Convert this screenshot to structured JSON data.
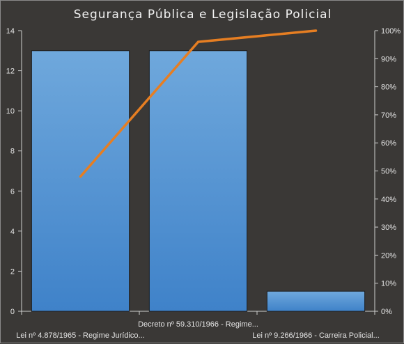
{
  "chart_data": {
    "type": "bar",
    "title": "Segurança Pública e Legislação Policial",
    "categories": [
      "Lei nº 4.878/1965 - Regime Jurídico...",
      "Decreto nº 59.310/1966 - Regime...",
      "Lei nº 9.266/1966 - Carreira Policial..."
    ],
    "series": [
      {
        "type": "bar",
        "values": [
          13,
          13,
          1
        ]
      },
      {
        "type": "line",
        "axis": "right",
        "values": [
          0.48,
          0.96,
          1.0
        ]
      }
    ],
    "ylim": [
      0,
      14
    ],
    "y_ticks": [
      "0",
      "2",
      "4",
      "6",
      "8",
      "10",
      "12",
      "14"
    ],
    "y2lim": [
      0,
      1
    ],
    "y2_ticks": [
      "0%",
      "10%",
      "20%",
      "30%",
      "40%",
      "50%",
      "60%",
      "70%",
      "80%",
      "90%",
      "100%"
    ],
    "grid": false,
    "legend": "none",
    "colors": {
      "bar_top": "#6fa8dc",
      "bar_bottom": "#3f82c9",
      "bar_edge": "#1c1c1c",
      "line": "#e67e22",
      "axis": "#cfcfcf",
      "background": "#3a3836"
    }
  }
}
